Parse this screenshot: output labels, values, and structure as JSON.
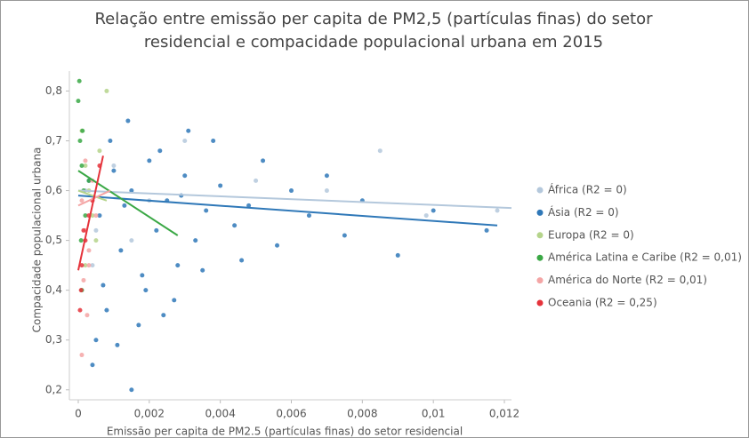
{
  "chart_data": {
    "type": "scatter",
    "title": [
      "Relação entre emissão per capita de PM2,5 (partículas finas) do setor",
      "residencial e compacidade populacional urbana em 2015"
    ],
    "x_label": "Emissão per capita de PM2.5 (partículas finas) do setor residencial",
    "y_label": "Compacidade populacional urbana",
    "xlim": [
      -0.00025,
      0.0122
    ],
    "ylim": [
      0.18,
      0.84
    ],
    "xticks": [
      0,
      {
        "value": 0.002,
        "label": "0,002"
      },
      {
        "value": 0.004,
        "label": "0,004"
      },
      {
        "value": 0.006,
        "label": "0,006"
      },
      {
        "value": 0.008,
        "label": "0,008"
      },
      {
        "value": 0.01,
        "label": "0,01"
      },
      {
        "value": 0.012,
        "label": "0,012"
      }
    ],
    "yticks": [
      {
        "value": 0.2,
        "label": "0,2"
      },
      {
        "value": 0.3,
        "label": "0,3"
      },
      {
        "value": 0.4,
        "label": "0,4"
      },
      {
        "value": 0.5,
        "label": "0,5"
      },
      {
        "value": 0.6,
        "label": "0,6"
      },
      {
        "value": 0.7,
        "label": "0,7"
      },
      {
        "value": 0.8,
        "label": "0,8"
      }
    ],
    "legend": "right",
    "series": [
      {
        "name": "África (R2 = 0)",
        "color": "#b4c8dc",
        "x": [
          0.0002,
          0.0005,
          0.001,
          0.002,
          0.003,
          0.005,
          0.007,
          0.0085,
          0.0098,
          0.0118,
          0.0004,
          0.0015
        ],
        "y": [
          0.6,
          0.52,
          0.65,
          0.58,
          0.7,
          0.62,
          0.6,
          0.68,
          0.55,
          0.56,
          0.45,
          0.5
        ],
        "trend": {
          "x": [
            0,
            0.0122
          ],
          "y": [
            0.6,
            0.565
          ]
        }
      },
      {
        "name": "Ásia (R2 = 0)",
        "color": "#2f78b8",
        "x": [
          0.0003,
          0.0006,
          0.0009,
          0.0012,
          0.0015,
          0.0018,
          0.002,
          0.0022,
          0.0025,
          0.0028,
          0.003,
          0.0033,
          0.0036,
          0.004,
          0.0044,
          0.0048,
          0.0052,
          0.0056,
          0.006,
          0.0065,
          0.007,
          0.0075,
          0.008,
          0.009,
          0.01,
          0.0115,
          0.0005,
          0.0008,
          0.0011,
          0.0014,
          0.0017,
          0.0019,
          0.0023,
          0.0027,
          0.0031,
          0.0035,
          0.0015,
          0.0004,
          0.0007,
          0.001,
          0.0013,
          0.0024,
          0.0029,
          0.0038,
          0.0046
        ],
        "y": [
          0.62,
          0.55,
          0.7,
          0.48,
          0.6,
          0.43,
          0.66,
          0.52,
          0.58,
          0.45,
          0.63,
          0.5,
          0.56,
          0.61,
          0.53,
          0.57,
          0.66,
          0.49,
          0.6,
          0.55,
          0.63,
          0.51,
          0.58,
          0.47,
          0.56,
          0.52,
          0.3,
          0.36,
          0.29,
          0.74,
          0.33,
          0.4,
          0.68,
          0.38,
          0.72,
          0.44,
          0.2,
          0.25,
          0.41,
          0.64,
          0.57,
          0.35,
          0.59,
          0.7,
          0.46
        ],
        "trend": {
          "x": [
            0,
            0.0118
          ],
          "y": [
            0.59,
            0.53
          ]
        }
      },
      {
        "name": "Europa (R2 = 0)",
        "color": "#b5d48b",
        "x": [
          0.0001,
          0.0002,
          0.0003,
          0.0004,
          0.0006,
          0.0008,
          0.0005,
          0.0002
        ],
        "y": [
          0.72,
          0.65,
          0.6,
          0.55,
          0.68,
          0.8,
          0.5,
          0.45
        ],
        "trend": {
          "x": [
            0,
            0.0008
          ],
          "y": [
            0.6,
            0.58
          ]
        }
      },
      {
        "name": "América Latina e Caribe (R2 = 0,01)",
        "color": "#3aa845",
        "x": [
          0,
          5e-05,
          0.0001,
          0.00015,
          0.0002,
          3e-05,
          8e-05,
          0.00012,
          0.0003,
          0.0001
        ],
        "y": [
          0.78,
          0.7,
          0.65,
          0.6,
          0.55,
          0.82,
          0.5,
          0.72,
          0.62,
          0.4
        ],
        "trend": {
          "x": [
            0,
            0.0028
          ],
          "y": [
            0.64,
            0.51
          ]
        }
      },
      {
        "name": "América do Norte (R2 = 0,01)",
        "color": "#f4a5a5",
        "x": [
          0.0001,
          0.0002,
          0.0003,
          0.0004,
          0.0005,
          0.00015,
          0.00025,
          0.0001,
          0.0002,
          0.0003
        ],
        "y": [
          0.58,
          0.52,
          0.48,
          0.62,
          0.55,
          0.42,
          0.35,
          0.27,
          0.66,
          0.45
        ],
        "trend": {
          "x": [
            0,
            0.0009
          ],
          "y": [
            0.57,
            0.6
          ]
        }
      },
      {
        "name": "Oceania (R2 = 0,25)",
        "color": "#e5333b",
        "x": [
          5e-05,
          0.0001,
          0.0002,
          0.0003,
          0.0004,
          0.0006,
          8e-05,
          0.00015
        ],
        "y": [
          0.36,
          0.45,
          0.5,
          0.55,
          0.58,
          0.65,
          0.4,
          0.52
        ],
        "trend": {
          "x": [
            0,
            0.0007
          ],
          "y": [
            0.44,
            0.67
          ]
        }
      }
    ]
  }
}
